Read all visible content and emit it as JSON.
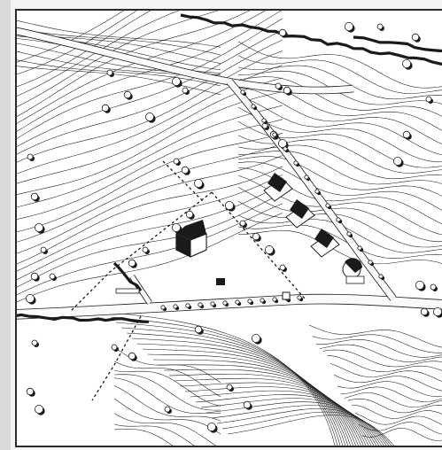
{
  "figure": {
    "kind": "site-plan-contour-map",
    "colors": {
      "ink": "#1a1a1a",
      "paper": "#ffffff",
      "border_strip": "#d9d9dc",
      "road_fill": "#fafafa"
    },
    "features": [
      "contour-lines",
      "main-road",
      "upper-road",
      "diagonal-road",
      "hedgerows",
      "trees",
      "buildings",
      "site-boundary"
    ]
  }
}
